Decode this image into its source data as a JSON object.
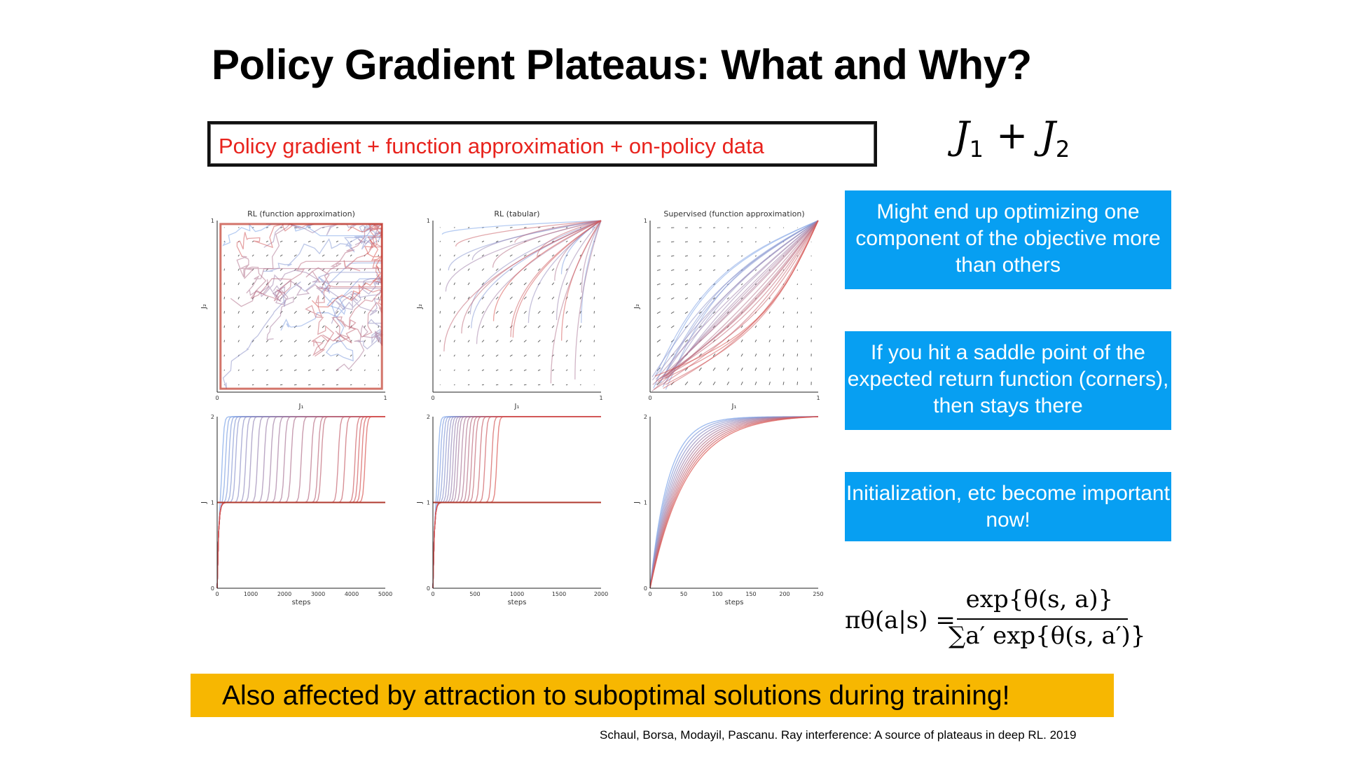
{
  "slide": {
    "title": "Policy Gradient Plateaus: What and Why?",
    "boxed_statement": "Policy gradient + function approximation + on-policy data",
    "objective_formula": {
      "j1": "J",
      "s1": "1",
      "plus": "+",
      "j2": "J",
      "s2": "2"
    },
    "callouts": [
      "Might end up optimizing one component of the objective more than others",
      "If you hit a saddle point of the expected return function (corners), then stays there",
      "Initialization, etc become important now!"
    ],
    "softmax": {
      "lhs": "πθ(a|s) =",
      "numerator": "exp{θ(s, a)}",
      "denominator": "∑a′ exp{θ(s, a′)}",
      "trailing": "."
    },
    "banner": "Also affected by attraction to suboptimal solutions during training!",
    "citation": "Schaul, Borsa, Modayil, Pascanu. Ray interference: A source of plateaus in deep RL. 2019",
    "colors": {
      "red_text": "#e8231d",
      "callout_bg": "#079ff2",
      "banner_bg": "#f7b701",
      "cool": "#7aa2e8",
      "warm": "#d9534f"
    }
  },
  "chart_data": [
    {
      "type": "line",
      "title": "RL (function approximation)",
      "xlabel": "J₁",
      "ylabel": "J₂",
      "xlim": [
        0,
        1
      ],
      "ylim": [
        0,
        1
      ],
      "x_ticks": [
        "0",
        "1"
      ],
      "y_ticks": [
        "1"
      ],
      "pattern": "phase-fa",
      "note": "trajectories hug the edges and end at (1,1) or stall at corners"
    },
    {
      "type": "line",
      "title": "RL (tabular)",
      "xlabel": "J₁",
      "ylabel": "J₂",
      "xlim": [
        0,
        1
      ],
      "ylim": [
        0,
        1
      ],
      "x_ticks": [
        "0",
        "1"
      ],
      "y_ticks": [
        "1"
      ],
      "pattern": "phase-tab"
    },
    {
      "type": "line",
      "title": "Supervised (function approximation)",
      "xlabel": "J₁",
      "ylabel": "J₂",
      "xlim": [
        0,
        1
      ],
      "ylim": [
        0,
        1
      ],
      "x_ticks": [
        "0",
        "1"
      ],
      "y_ticks": [
        "1"
      ],
      "pattern": "phase-sup"
    },
    {
      "type": "line",
      "xlabel": "steps",
      "ylabel": "J",
      "xlim": [
        0,
        5000
      ],
      "ylim": [
        0,
        2
      ],
      "x_ticks": [
        "0",
        "1000",
        "2000",
        "3000",
        "4000",
        "5000"
      ],
      "y_ticks": [
        "0",
        "1",
        "2"
      ],
      "plateau_level": 1,
      "final_level": 2,
      "jump_steps": [
        150,
        250,
        350,
        450,
        550,
        700,
        850,
        1000,
        1200,
        1400,
        1600,
        1800,
        2000,
        2200,
        2500,
        2800,
        3000,
        3100,
        3600,
        3800,
        4100,
        4200,
        4300,
        4400
      ]
    },
    {
      "type": "line",
      "xlabel": "steps",
      "ylabel": "J",
      "xlim": [
        0,
        2000
      ],
      "ylim": [
        0,
        2
      ],
      "x_ticks": [
        "0",
        "500",
        "1000",
        "1500",
        "2000"
      ],
      "y_ticks": [
        "0",
        "1",
        "2"
      ],
      "plateau_level": 1,
      "final_level": 2,
      "jump_steps": [
        60,
        90,
        120,
        150,
        180,
        210,
        240,
        270,
        300,
        340,
        380,
        420,
        460,
        500,
        560,
        620,
        700,
        760
      ]
    },
    {
      "type": "line",
      "xlabel": "steps",
      "ylabel": "J",
      "xlim": [
        0,
        250
      ],
      "ylim": [
        0,
        2
      ],
      "x_ticks": [
        "0",
        "50",
        "100",
        "150",
        "200",
        "250"
      ],
      "y_ticks": [
        "0",
        "1",
        "2"
      ],
      "final_level": 2,
      "midpoints": [
        30,
        33,
        36,
        39,
        42,
        45,
        48,
        51,
        54,
        57,
        60
      ]
    }
  ]
}
